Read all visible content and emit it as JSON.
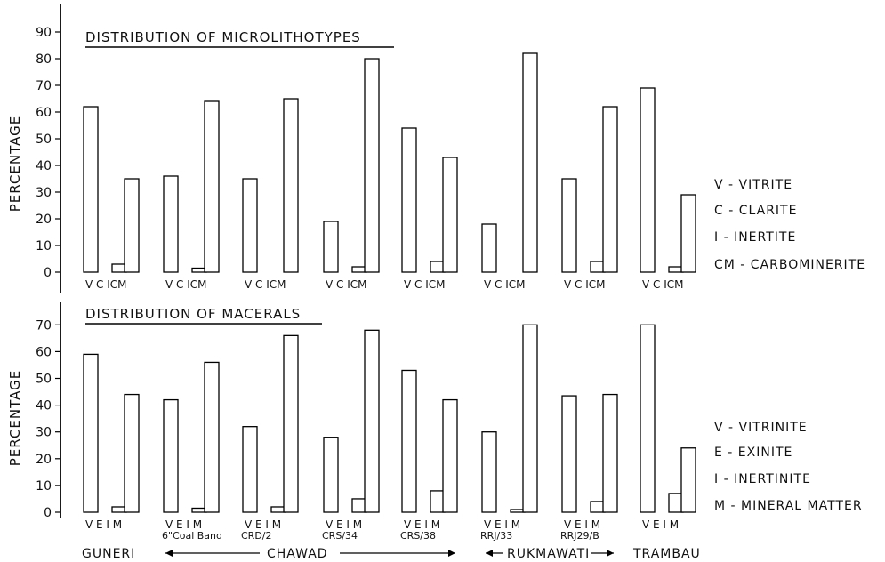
{
  "chart_data": [
    {
      "type": "bar",
      "title": "DISTRIBUTION OF MICROLITHOTYPES",
      "ylabel": "PERCENTAGE",
      "ylim": [
        0,
        90
      ],
      "yticks": [
        0,
        10,
        20,
        30,
        40,
        50,
        60,
        70,
        80,
        90
      ],
      "bar_labels": [
        "V",
        "C",
        "I",
        "CM"
      ],
      "tick_text": "V C ICM",
      "groups": [
        {
          "values": [
            62,
            0,
            3,
            35
          ]
        },
        {
          "values": [
            36,
            0,
            1.5,
            64
          ]
        },
        {
          "values": [
            35,
            0,
            0,
            65
          ]
        },
        {
          "values": [
            19,
            0,
            2,
            80
          ]
        },
        {
          "values": [
            54,
            0,
            4,
            43
          ]
        },
        {
          "values": [
            18,
            0,
            0,
            82
          ]
        },
        {
          "values": [
            35,
            0,
            4,
            62
          ]
        },
        {
          "values": [
            69,
            0,
            2,
            29
          ]
        }
      ],
      "legend": [
        "V - VITRITE",
        "C - CLARITE",
        "I - INERTITE",
        "CM - CARBOMINERITE"
      ]
    },
    {
      "type": "bar",
      "title": "DISTRIBUTION OF MACERALS",
      "ylabel": "PERCENTAGE",
      "ylim": [
        0,
        70
      ],
      "yticks": [
        0,
        10,
        20,
        30,
        40,
        50,
        60,
        70
      ],
      "bar_labels": [
        "V",
        "E",
        "I",
        "M"
      ],
      "tick_text": "V E I M",
      "groups": [
        {
          "values": [
            59,
            0,
            2,
            44
          ]
        },
        {
          "values": [
            42,
            0,
            1.5,
            56
          ]
        },
        {
          "values": [
            32,
            0,
            2,
            66
          ]
        },
        {
          "values": [
            28,
            0,
            5,
            68
          ]
        },
        {
          "values": [
            53,
            0,
            8,
            42
          ]
        },
        {
          "values": [
            30,
            0,
            1,
            70
          ]
        },
        {
          "values": [
            43.5,
            0,
            4,
            44
          ]
        },
        {
          "values": [
            70,
            0,
            7,
            24
          ]
        }
      ],
      "legend": [
        "V - VITRINITE",
        "E - EXINITE",
        "I - INERTINITE",
        "M - MINERAL MATTER"
      ]
    }
  ],
  "samples": [
    "",
    "6\"Coal Band",
    "CRD/2",
    "CRS/34",
    "CRS/38",
    "RRJ/33",
    "RRJ29/B",
    ""
  ],
  "regions": [
    {
      "label": "GUNERI"
    },
    {
      "label": "CHAWAD"
    },
    {
      "label": "RUKMAWATI"
    },
    {
      "label": "TRAMBAU"
    }
  ]
}
